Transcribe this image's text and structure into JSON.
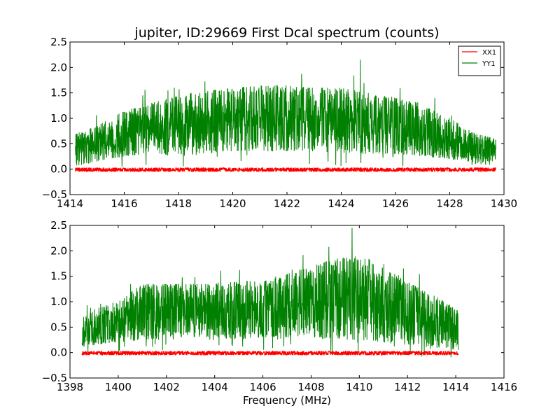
{
  "chart_data": [
    {
      "type": "line",
      "title": "jupiter, ID:29669 First Dcal spectrum (counts)",
      "xlabel": "",
      "ylabel": "",
      "xlim": [
        1414,
        1430
      ],
      "ylim": [
        -0.5,
        2.5
      ],
      "xticks": [
        "1414",
        "1416",
        "1418",
        "1420",
        "1422",
        "1424",
        "1426",
        "1428",
        "1430"
      ],
      "yticks": [
        "−0.5",
        "0.0",
        "0.5",
        "1.0",
        "1.5",
        "2.0",
        "2.5"
      ],
      "legend": "top-right",
      "grid": false,
      "series": [
        {
          "name": "XX1",
          "color": "#ff0000",
          "x_range": [
            1414.2,
            1429.7
          ],
          "envelope_x": [
            1414.2,
            1429.7
          ],
          "envelope_low": [
            -0.05,
            -0.05
          ],
          "envelope_high": [
            0.03,
            0.03
          ]
        },
        {
          "name": "YY1",
          "color": "#008000",
          "x_range": [
            1414.2,
            1429.7
          ],
          "envelope_x": [
            1414.2,
            1415,
            1416,
            1417,
            1418,
            1419,
            1420,
            1421,
            1422,
            1423,
            1424,
            1425,
            1426,
            1427,
            1428,
            1429,
            1429.7
          ],
          "envelope_low": [
            0.05,
            0.15,
            0.25,
            0.3,
            0.25,
            0.3,
            0.35,
            0.35,
            0.35,
            0.35,
            0.3,
            0.3,
            0.3,
            0.25,
            0.2,
            0.1,
            0.05
          ],
          "envelope_high": [
            0.7,
            0.85,
            1.15,
            1.3,
            1.45,
            1.55,
            1.6,
            1.65,
            1.65,
            1.6,
            1.6,
            1.5,
            1.4,
            1.3,
            1.0,
            0.7,
            0.6
          ],
          "peak": [
            1424.7,
            2.15
          ]
        }
      ]
    },
    {
      "type": "line",
      "title": "",
      "xlabel": "Frequency (MHz)",
      "ylabel": "",
      "xlim": [
        1398,
        1416
      ],
      "ylim": [
        -0.5,
        2.5
      ],
      "xticks": [
        "1398",
        "1400",
        "1402",
        "1404",
        "1406",
        "1408",
        "1410",
        "1412",
        "1414",
        "1416"
      ],
      "yticks": [
        "−0.5",
        "0.0",
        "0.5",
        "1.0",
        "1.5",
        "2.0",
        "2.5"
      ],
      "grid": false,
      "series": [
        {
          "color": "#ff0000",
          "x_range": [
            1398.5,
            1414.1
          ],
          "envelope_x": [
            1398.5,
            1414.1
          ],
          "envelope_low": [
            -0.05,
            -0.05
          ],
          "envelope_high": [
            0.03,
            0.03
          ]
        },
        {
          "color": "#008000",
          "x_range": [
            1398.5,
            1414.1
          ],
          "envelope_x": [
            1398.5,
            1399,
            1400,
            1401,
            1402,
            1403,
            1404,
            1405,
            1406,
            1407,
            1408,
            1409,
            1410,
            1411,
            1412,
            1413,
            1414.1
          ],
          "envelope_low": [
            0.1,
            0.15,
            0.2,
            0.25,
            0.25,
            0.3,
            0.3,
            0.25,
            0.3,
            0.3,
            0.3,
            0.25,
            0.25,
            0.2,
            0.15,
            0.1,
            0.05
          ],
          "envelope_high": [
            0.7,
            0.85,
            1.05,
            1.35,
            1.35,
            1.35,
            1.35,
            1.4,
            1.45,
            1.55,
            1.7,
            1.85,
            1.9,
            1.8,
            1.4,
            1.15,
            0.85
          ],
          "peak": [
            1409.7,
            2.45
          ]
        }
      ]
    }
  ]
}
